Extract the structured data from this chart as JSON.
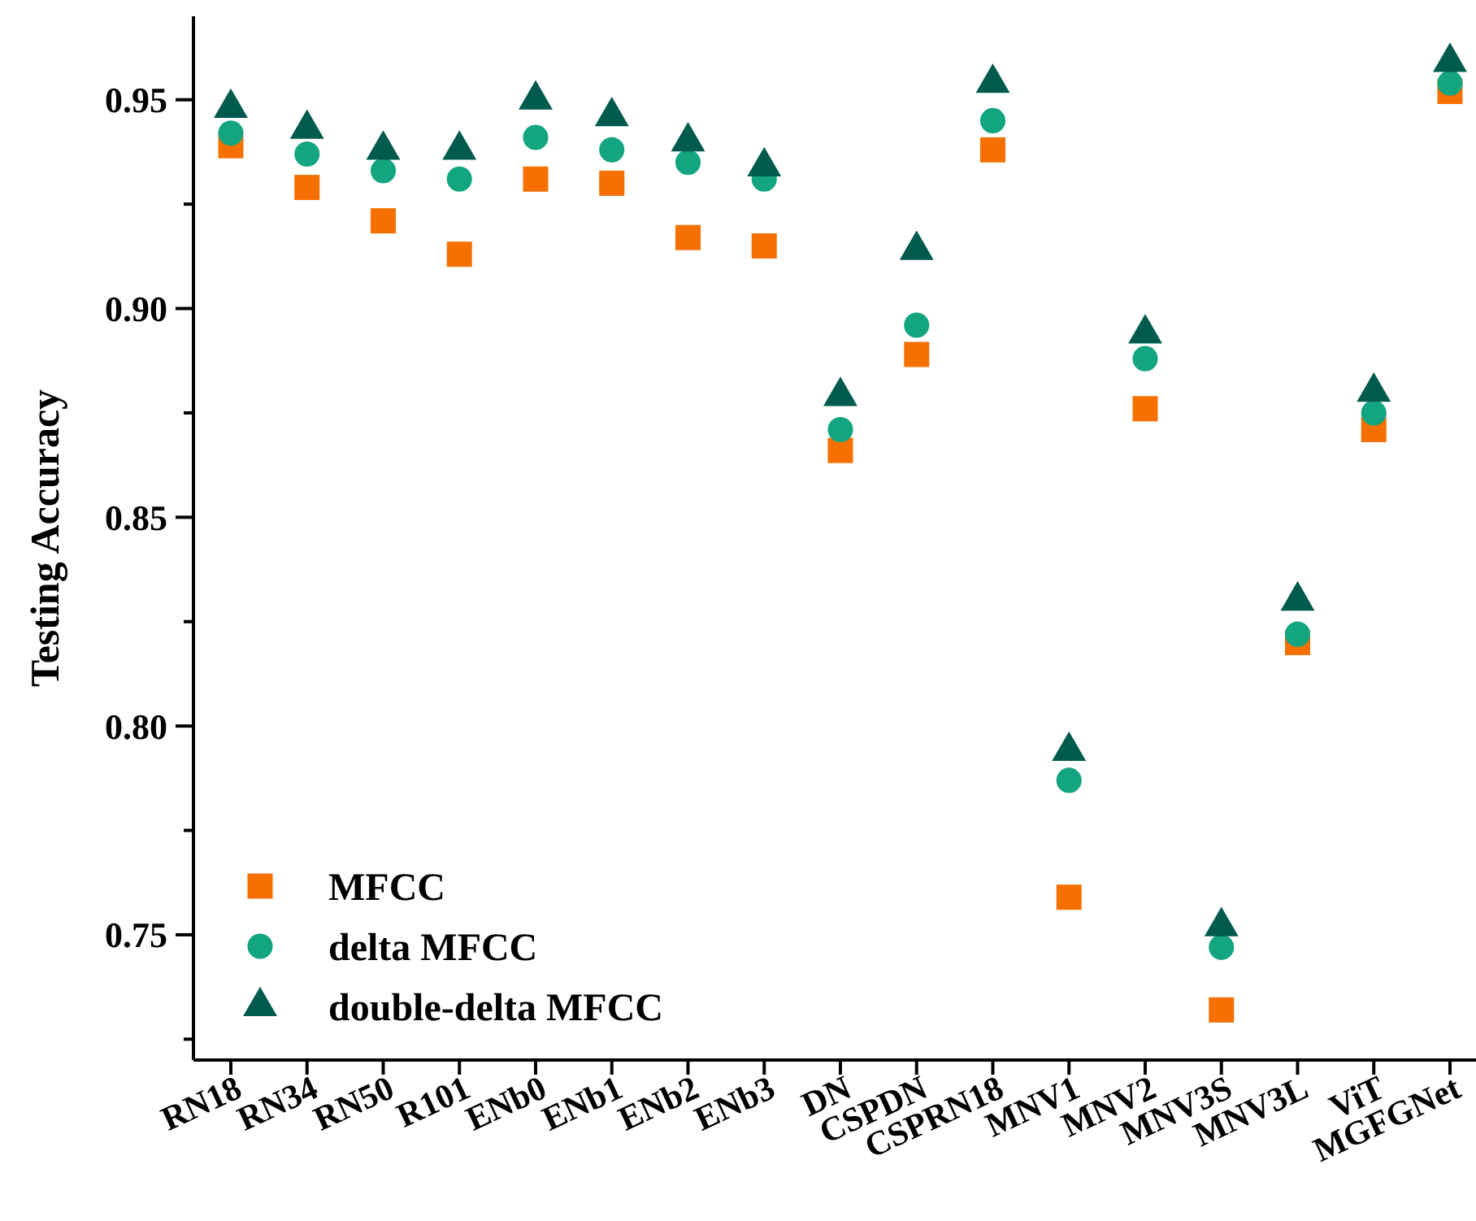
{
  "chart_data": {
    "type": "scatter",
    "ylabel": "Testing Accuracy",
    "categories": [
      "RN18",
      "RN34",
      "RN50",
      "R101",
      "ENb0",
      "ENb1",
      "ENb2",
      "ENb3",
      "DN",
      "CSPDN",
      "CSPRN18",
      "MNV1",
      "MNV2",
      "MNV3S",
      "MNV3L",
      "ViT",
      "MGFGNet"
    ],
    "series": [
      {
        "name": "MFCC",
        "color": "#f57000",
        "marker": "square",
        "values": [
          0.939,
          0.929,
          0.921,
          0.913,
          0.931,
          0.93,
          0.917,
          0.915,
          0.866,
          0.889,
          0.938,
          0.759,
          0.876,
          0.732,
          0.82,
          0.871,
          0.952
        ]
      },
      {
        "name": "delta MFCC",
        "color": "#13a57f",
        "marker": "circle",
        "values": [
          0.942,
          0.937,
          0.933,
          0.931,
          0.941,
          0.938,
          0.935,
          0.931,
          0.871,
          0.896,
          0.945,
          0.787,
          0.888,
          0.747,
          0.822,
          0.875,
          0.954
        ]
      },
      {
        "name": "double-delta MFCC",
        "color": "#005a4e",
        "marker": "triangle",
        "values": [
          0.948,
          0.943,
          0.938,
          0.938,
          0.95,
          0.946,
          0.94,
          0.934,
          0.879,
          0.914,
          0.954,
          0.794,
          0.894,
          0.752,
          0.83,
          0.88,
          0.959
        ]
      }
    ],
    "ylim": [
      0.72,
      0.97
    ],
    "yticks": [
      {
        "value": 0.725,
        "label": null
      },
      0.75,
      {
        "value": 0.775,
        "label": null
      },
      {
        "value": 0.8,
        "label": "0.80"
      },
      {
        "value": 0.825,
        "label": null
      },
      0.85,
      {
        "value": 0.875,
        "label": null
      },
      {
        "value": 0.9,
        "label": "0.90"
      },
      {
        "value": 0.925,
        "label": null
      },
      0.95
    ],
    "grid": false,
    "legend": "bottom left"
  }
}
